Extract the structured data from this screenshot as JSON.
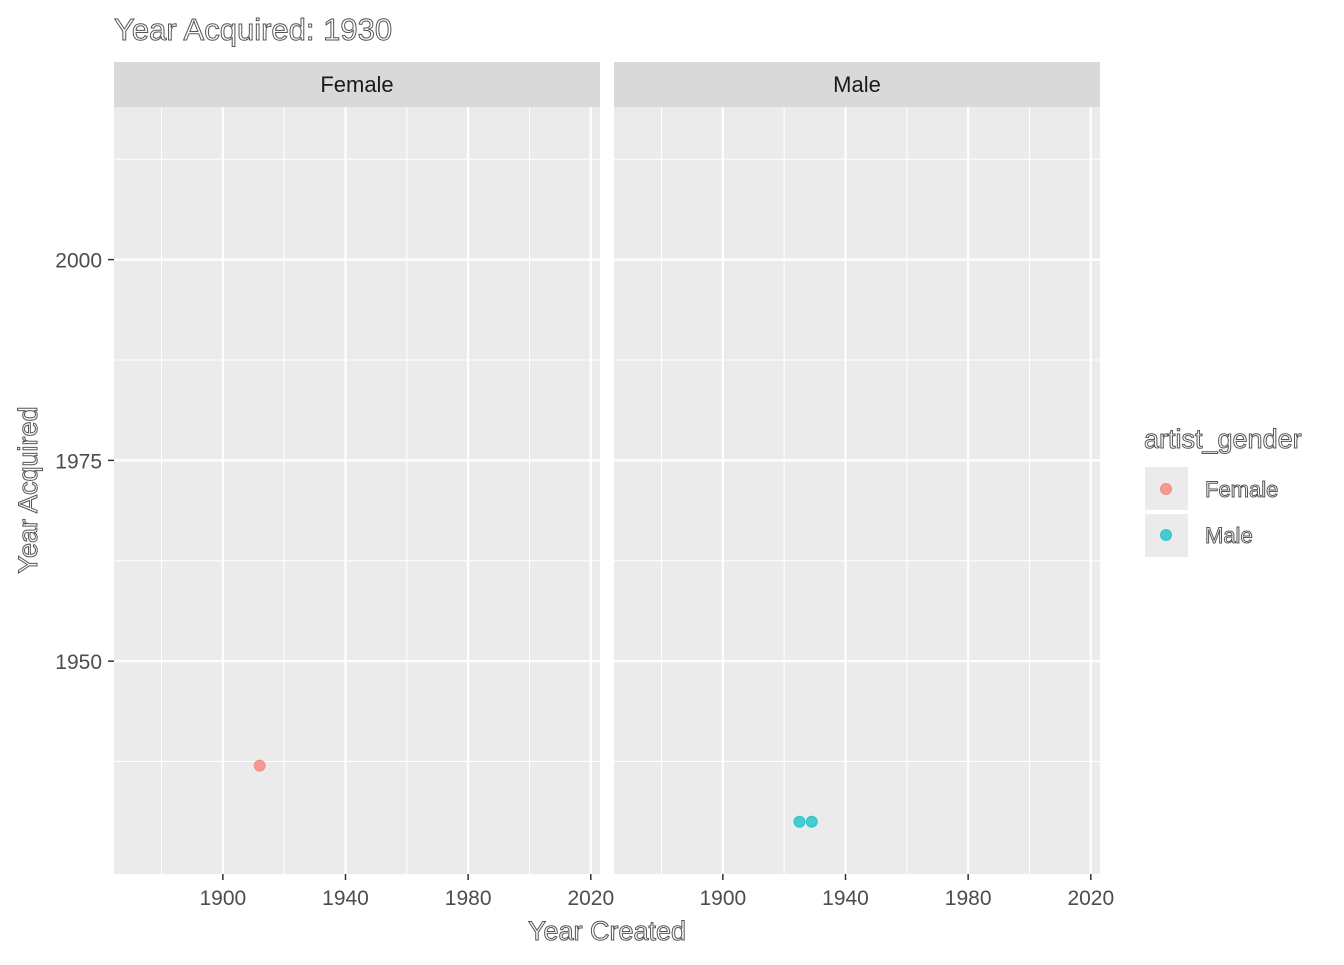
{
  "chart_data": {
    "type": "scatter",
    "title": "Year Acquired: 1930",
    "xlabel": "Year Created",
    "ylabel": "Year Acquired",
    "facets": [
      "Female",
      "Male"
    ],
    "xlim": [
      1864.5,
      2023
    ],
    "ylim": [
      1923.5,
      2019
    ],
    "x_ticks": [
      1900,
      1940,
      1980,
      2020
    ],
    "x_minor": [
      1880,
      1920,
      1960,
      2000
    ],
    "y_ticks": [
      2000,
      1975,
      1950
    ],
    "y_minor": [
      1937.5,
      1962.5,
      1987.5,
      2012.5
    ],
    "grid": true,
    "legend": {
      "title": "artist_gender",
      "position": "right",
      "items": [
        {
          "label": "Female",
          "color": "#F8766D"
        },
        {
          "label": "Male",
          "color": "#00BFC4"
        }
      ]
    },
    "series": [
      {
        "name": "Female",
        "facet": "Female",
        "color": "#F8766D",
        "points": [
          {
            "x": 1912,
            "y": 1937
          }
        ]
      },
      {
        "name": "Male",
        "facet": "Male",
        "color": "#00BFC4",
        "points": [
          {
            "x": 1925,
            "y": 1930
          },
          {
            "x": 1929,
            "y": 1930
          }
        ]
      }
    ]
  }
}
